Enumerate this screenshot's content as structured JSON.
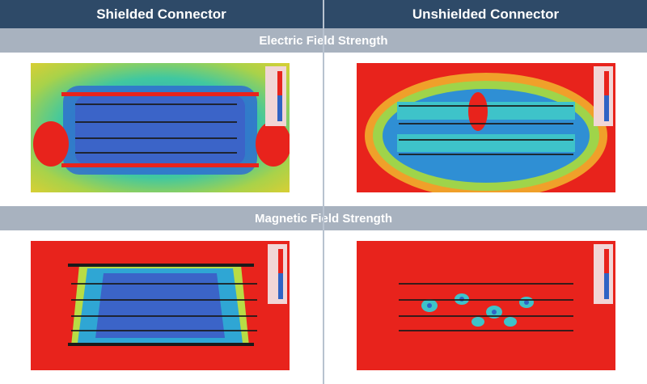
{
  "columns": {
    "left": "Shielded Connector",
    "right": "Unshielded Connector"
  },
  "sections": {
    "electric": "Electric Field Strength",
    "magnetic": "Magnetic Field Strength"
  },
  "colors": {
    "header_bg": "#2e4a68",
    "band_bg": "#a8b2bf",
    "field_high": "#e8231c",
    "field_low": "#2f63c4"
  }
}
